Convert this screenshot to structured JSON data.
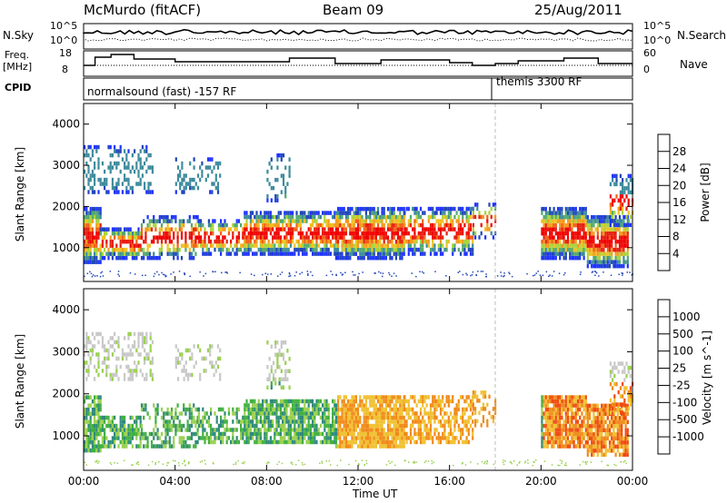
{
  "header": {
    "station": "McMurdo (fitACF)",
    "beam": "Beam 09",
    "date": "25/Aug/2011"
  },
  "top_panel": {
    "left_label_1": "N.Sky",
    "right_label_1": "N.Search",
    "left_ticks": [
      "10^5",
      "10^0"
    ],
    "right_ticks": [
      "10^5",
      "10^0"
    ],
    "left_label_2a": "Freq.",
    "left_label_2b": "[MHz]",
    "left_ticks_2": [
      "18",
      "8"
    ],
    "right_label_2": "Nave",
    "right_ticks_2": [
      "60",
      "0"
    ],
    "cpid_label": "CPID",
    "mode_1": "normalsound (fast) -157 RF",
    "mode_2": "themis 3300 RF"
  },
  "chart_data": [
    {
      "type": "heatmap",
      "name": "power",
      "xlabel": "Time UT",
      "ylabel": "Slant Range [km]",
      "x_ticks": [
        "00:00",
        "04:00",
        "08:00",
        "12:00",
        "16:00",
        "20:00",
        "00:00"
      ],
      "x_range_hours": [
        0,
        24
      ],
      "y_ticks": [
        1000,
        2000,
        3000,
        4000
      ],
      "ylim": [
        180,
        4500
      ],
      "colorbar_label": "Power [dB]",
      "colorbar_ticks": [
        "4",
        "8",
        "12",
        "16",
        "20",
        "24",
        "28"
      ],
      "colorbar_colors": [
        "#1f33ff",
        "#2046b8",
        "#3c8a9c",
        "#52a86e",
        "#a8d43a",
        "#f0c020",
        "#f49a1a",
        "#f06018",
        "#e62010",
        "#f00000"
      ],
      "mode_change_hour": 18
    },
    {
      "type": "heatmap",
      "name": "velocity",
      "xlabel": "Time UT",
      "ylabel": "Slant Range [km]",
      "x_ticks": [
        "00:00",
        "04:00",
        "08:00",
        "12:00",
        "16:00",
        "20:00",
        "00:00"
      ],
      "y_ticks": [
        1000,
        2000,
        3000,
        4000
      ],
      "ylim": [
        180,
        4500
      ],
      "colorbar_label": "Velocity [m s^-1]",
      "colorbar_ticks": [
        "1000",
        "500",
        "100",
        "25",
        "-25",
        "-100",
        "-500",
        "-1000"
      ],
      "colorbar_colors": [
        "#2a3cf0",
        "#2a6ab0",
        "#2f8a7a",
        "#40b040",
        "#9ad050",
        "#c8c8c8",
        "#f0c030",
        "#f08a1a",
        "#f04a10",
        "#f00000"
      ],
      "mode_change_hour": 18
    }
  ]
}
